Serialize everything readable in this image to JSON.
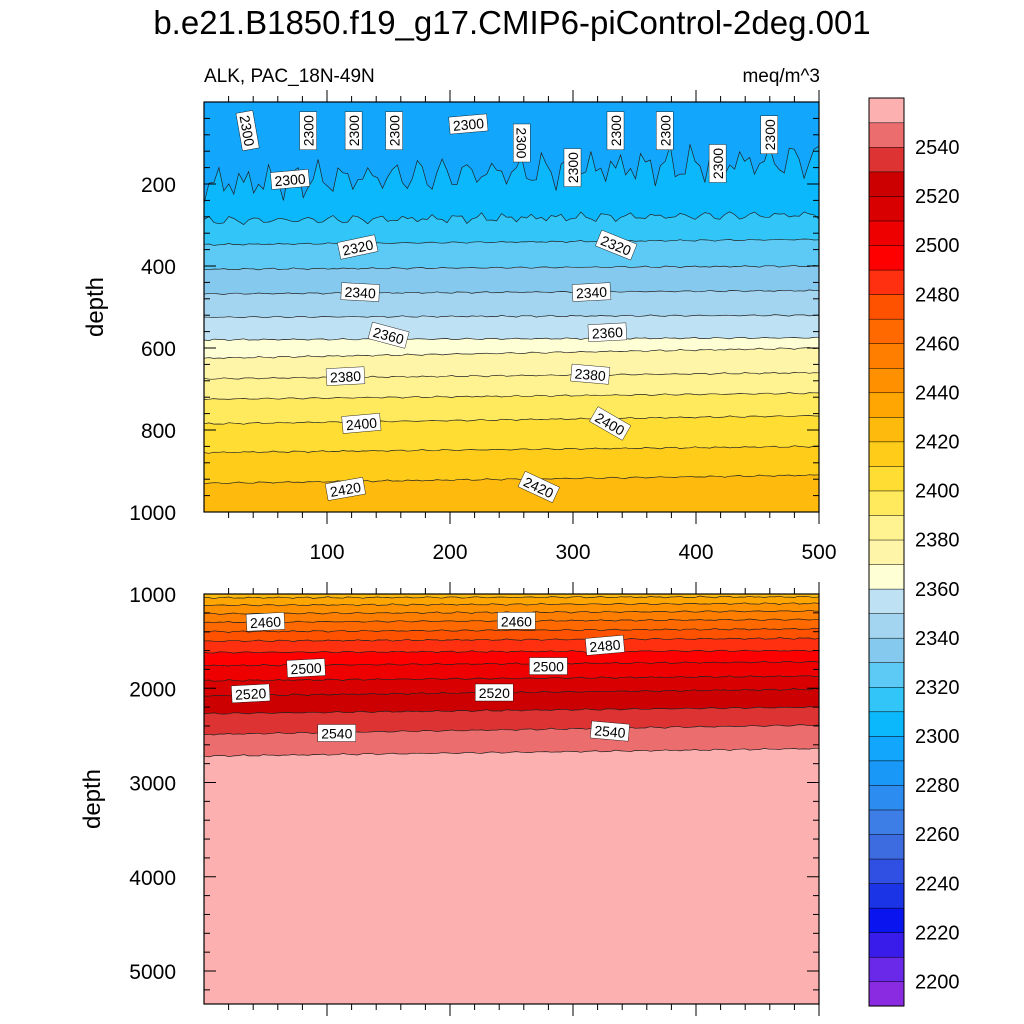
{
  "chart_data": {
    "type": "heatmap",
    "title": "b.e21.B1850.f19_g17.CMIP6-piControl-2deg.001",
    "subtitle_left": "ALK, PAC_18N-49N",
    "units": "meq/m^3",
    "x": {
      "range": [
        0,
        500
      ],
      "ticks": [
        100,
        200,
        300,
        400,
        500
      ],
      "label": ""
    },
    "panels": [
      {
        "name": "upper",
        "ylabel": "depth",
        "ylim": [
          0,
          1000
        ],
        "yticks": [
          200,
          400,
          600,
          800,
          1000
        ],
        "contour_levels": [
          {
            "value": 2300,
            "depth_left": 200,
            "depth_right": 140,
            "wavy": true
          },
          {
            "value": 2310,
            "depth_left": 290,
            "depth_right": 275,
            "wavy": true
          },
          {
            "value": 2320,
            "depth_left": 348,
            "depth_right": 335
          },
          {
            "value": 2330,
            "depth_left": 408,
            "depth_right": 400
          },
          {
            "value": 2340,
            "depth_left": 468,
            "depth_right": 460
          },
          {
            "value": 2350,
            "depth_left": 525,
            "depth_right": 520
          },
          {
            "value": 2360,
            "depth_left": 580,
            "depth_right": 575
          },
          {
            "value": 2370,
            "depth_left": 625,
            "depth_right": 600
          },
          {
            "value": 2380,
            "depth_left": 675,
            "depth_right": 660
          },
          {
            "value": 2390,
            "depth_left": 725,
            "depth_right": 710
          },
          {
            "value": 2400,
            "depth_left": 785,
            "depth_right": 765
          },
          {
            "value": 2410,
            "depth_left": 855,
            "depth_right": 840
          },
          {
            "value": 2420,
            "depth_left": 930,
            "depth_right": 910
          }
        ],
        "contour_labels": [
          {
            "text": "2300",
            "x": 35,
            "depth": 70,
            "angle": 80
          },
          {
            "text": "2300",
            "x": 85,
            "depth": 70,
            "angle": -90
          },
          {
            "text": "2300",
            "x": 122,
            "depth": 70,
            "angle": -90
          },
          {
            "text": "2300",
            "x": 155,
            "depth": 70,
            "angle": -90
          },
          {
            "text": "2300",
            "x": 70,
            "depth": 190,
            "angle": -5
          },
          {
            "text": "2300",
            "x": 215,
            "depth": 55,
            "angle": -5
          },
          {
            "text": "2300",
            "x": 258,
            "depth": 100,
            "angle": 90
          },
          {
            "text": "2300",
            "x": 300,
            "depth": 160,
            "angle": -90
          },
          {
            "text": "2300",
            "x": 335,
            "depth": 70,
            "angle": -90
          },
          {
            "text": "2300",
            "x": 375,
            "depth": 70,
            "angle": -90
          },
          {
            "text": "2300",
            "x": 418,
            "depth": 150,
            "angle": -90
          },
          {
            "text": "2300",
            "x": 460,
            "depth": 80,
            "angle": -90
          },
          {
            "text": "2320",
            "x": 125,
            "depth": 355,
            "angle": -12
          },
          {
            "text": "2320",
            "x": 335,
            "depth": 350,
            "angle": 22
          },
          {
            "text": "2340",
            "x": 127,
            "depth": 465,
            "angle": 3
          },
          {
            "text": "2340",
            "x": 315,
            "depth": 465,
            "angle": -3
          },
          {
            "text": "2360",
            "x": 150,
            "depth": 570,
            "angle": 15
          },
          {
            "text": "2360",
            "x": 328,
            "depth": 563,
            "angle": -3
          },
          {
            "text": "2380",
            "x": 115,
            "depth": 670,
            "angle": -3
          },
          {
            "text": "2380",
            "x": 314,
            "depth": 665,
            "angle": 5
          },
          {
            "text": "2400",
            "x": 128,
            "depth": 785,
            "angle": -5
          },
          {
            "text": "2400",
            "x": 330,
            "depth": 785,
            "angle": 30
          },
          {
            "text": "2420",
            "x": 115,
            "depth": 945,
            "angle": -10
          },
          {
            "text": "2420",
            "x": 272,
            "depth": 940,
            "angle": 25
          }
        ]
      },
      {
        "name": "lower",
        "ylabel": "depth",
        "ylim": [
          1000,
          5350
        ],
        "yticks": [
          1000,
          2000,
          3000,
          4000,
          5000
        ],
        "contour_levels": [
          {
            "value": 2430,
            "depth_left": 1040,
            "depth_right": 1030
          },
          {
            "value": 2440,
            "depth_left": 1120,
            "depth_right": 1100
          },
          {
            "value": 2450,
            "depth_left": 1210,
            "depth_right": 1180
          },
          {
            "value": 2460,
            "depth_left": 1300,
            "depth_right": 1270
          },
          {
            "value": 2470,
            "depth_left": 1400,
            "depth_right": 1370
          },
          {
            "value": 2480,
            "depth_left": 1500,
            "depth_right": 1470
          },
          {
            "value": 2490,
            "depth_left": 1620,
            "depth_right": 1600
          },
          {
            "value": 2500,
            "depth_left": 1760,
            "depth_right": 1720
          },
          {
            "value": 2510,
            "depth_left": 1920,
            "depth_right": 1870
          },
          {
            "value": 2520,
            "depth_left": 2080,
            "depth_right": 2010
          },
          {
            "value": 2530,
            "depth_left": 2270,
            "depth_right": 2200
          },
          {
            "value": 2540,
            "depth_left": 2490,
            "depth_right": 2390
          },
          {
            "value": 2550,
            "depth_left": 2720,
            "depth_right": 2640
          }
        ],
        "contour_labels": [
          {
            "text": "2460",
            "x": 50,
            "depth": 1300,
            "angle": -3
          },
          {
            "text": "2460",
            "x": 254,
            "depth": 1290,
            "angle": 0
          },
          {
            "text": "2480",
            "x": 326,
            "depth": 1550,
            "angle": -5
          },
          {
            "text": "2500",
            "x": 83,
            "depth": 1790,
            "angle": -3
          },
          {
            "text": "2500",
            "x": 280,
            "depth": 1770,
            "angle": 0
          },
          {
            "text": "2520",
            "x": 38,
            "depth": 2060,
            "angle": -3
          },
          {
            "text": "2520",
            "x": 236,
            "depth": 2050,
            "angle": 0
          },
          {
            "text": "2540",
            "x": 108,
            "depth": 2480,
            "angle": 0
          },
          {
            "text": "2540",
            "x": 330,
            "depth": 2460,
            "angle": 5
          }
        ]
      }
    ],
    "colorbar": {
      "levels": [
        2200,
        2210,
        2220,
        2230,
        2240,
        2250,
        2260,
        2270,
        2280,
        2290,
        2300,
        2310,
        2320,
        2330,
        2340,
        2350,
        2360,
        2370,
        2380,
        2390,
        2400,
        2410,
        2420,
        2430,
        2440,
        2450,
        2460,
        2470,
        2480,
        2490,
        2500,
        2510,
        2520,
        2530,
        2540,
        2550
      ],
      "tick_labels": [
        2200,
        2220,
        2240,
        2260,
        2280,
        2300,
        2320,
        2340,
        2360,
        2380,
        2400,
        2420,
        2440,
        2460,
        2480,
        2500,
        2520,
        2540
      ],
      "colors": [
        "#8a2be2",
        "#6a28e8",
        "#3a1cea",
        "#0a14ee",
        "#1a34e6",
        "#3050e4",
        "#3d6be0",
        "#3d7de6",
        "#2c8cf0",
        "#1a98f8",
        "#12a6fc",
        "#0cb8fc",
        "#32c6f8",
        "#5ccaf5",
        "#86c9ee",
        "#a4d5f0",
        "#bee2f3",
        "#ffffd6",
        "#fff5a8",
        "#fff290",
        "#ffe95d",
        "#ffdd33",
        "#ffcc1a",
        "#ffbb0d",
        "#ffa602",
        "#ff9100",
        "#ff7e00",
        "#ff6900",
        "#ff5200",
        "#ff3010",
        "#ff0000",
        "#ee0000",
        "#d80000",
        "#cc0000",
        "#dd3333",
        "#ec6d6d",
        "#fcb0b0"
      ]
    }
  }
}
